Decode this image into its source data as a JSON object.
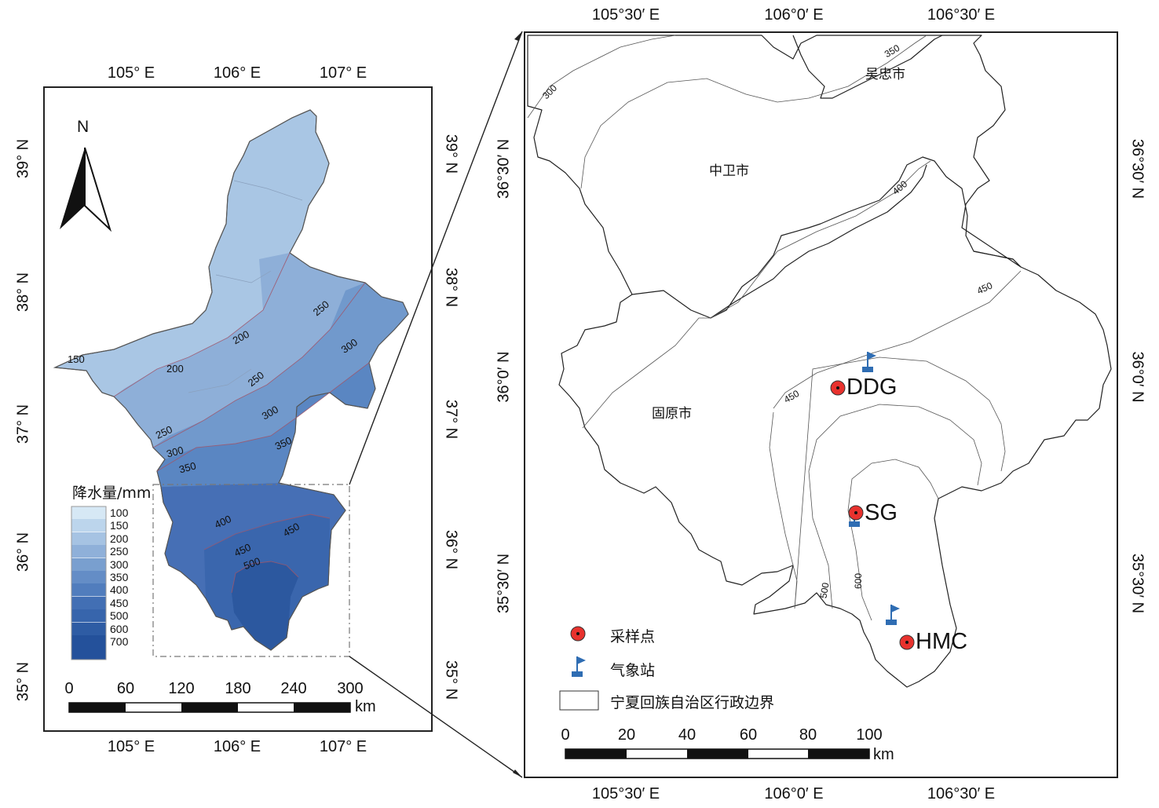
{
  "left_map": {
    "top_ticks": [
      "105° E",
      "106° E",
      "107° E"
    ],
    "bottom_ticks": [
      "105° E",
      "106° E",
      "107° E"
    ],
    "left_ticks": [
      "39° N",
      "38° N",
      "37° N",
      "36° N",
      "35° N"
    ],
    "right_ticks": [
      "39° N",
      "38° N",
      "37° N",
      "36° N",
      "35° N"
    ],
    "north_label": "N",
    "legend_title": "降水量/mm",
    "legend_items": [
      {
        "label": "100",
        "color": "#d6e8f5"
      },
      {
        "label": "150",
        "color": "#bcd5ec"
      },
      {
        "label": "200",
        "color": "#a6c3e3"
      },
      {
        "label": "250",
        "color": "#8fb0d9"
      },
      {
        "label": "300",
        "color": "#799fcf"
      },
      {
        "label": "350",
        "color": "#648dc6"
      },
      {
        "label": "400",
        "color": "#517dbd"
      },
      {
        "label": "450",
        "color": "#426fb4"
      },
      {
        "label": "500",
        "color": "#3765ac"
      },
      {
        "label": "600",
        "color": "#2e5ca4"
      },
      {
        "label": "700",
        "color": "#24519b"
      }
    ],
    "contour_labels": [
      "150",
      "200",
      "200",
      "250",
      "250",
      "250",
      "300",
      "300",
      "300",
      "350",
      "350",
      "400",
      "450",
      "450",
      "500"
    ],
    "scalebar_numbers": [
      "0",
      "60",
      "120",
      "180",
      "240",
      "300"
    ],
    "scalebar_unit": "km"
  },
  "right_map": {
    "top_ticks": [
      "105°30′ E",
      "106°0′ E",
      "106°30′ E"
    ],
    "bottom_ticks": [
      "105°30′ E",
      "106°0′ E",
      "106°30′ E"
    ],
    "left_ticks": [
      "36°30′ N",
      "36°0′ N",
      "35°30′ N"
    ],
    "right_ticks": [
      "36°30′ N",
      "36°0′ N",
      "35°30′ N"
    ],
    "cities": [
      "吴忠市",
      "中卫市",
      "固原市"
    ],
    "contour_labels": [
      "300",
      "350",
      "400",
      "450",
      "450",
      "500",
      "600"
    ],
    "sites": [
      "DDG",
      "SG",
      "HMC"
    ],
    "legend": {
      "sample_point": "采样点",
      "weather_station": "气象站",
      "boundary": "宁夏回族自治区行政边界"
    },
    "scalebar_numbers": [
      "0",
      "20",
      "40",
      "60",
      "80",
      "100"
    ],
    "scalebar_unit": "km"
  },
  "colors": {
    "sample_point": "#e8322e",
    "station": "#2f6db3",
    "frame": "#222222"
  }
}
